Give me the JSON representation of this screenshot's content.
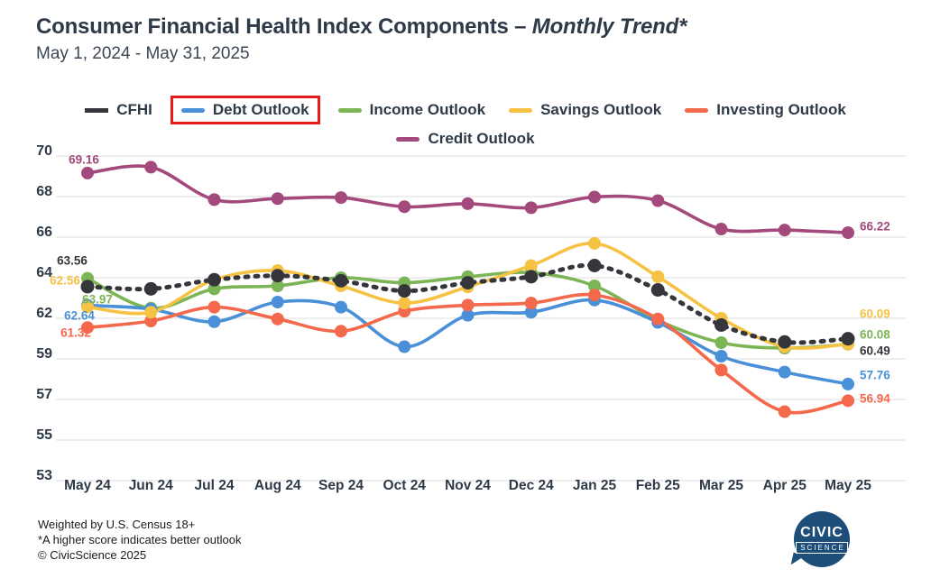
{
  "header": {
    "title_main": "Consumer Financial Health Index Components",
    "title_dash": " – ",
    "title_italic": "Monthly Trend*",
    "subtitle": "May 1, 2024 - May 31, 2025"
  },
  "legend": {
    "highlight_box_color": "#e31b1b",
    "items": [
      {
        "label": "CFHI",
        "color": "#35363c",
        "style": "dashed",
        "highlighted": false
      },
      {
        "label": "Debt Outlook",
        "color": "#4a90d9",
        "style": "solid",
        "highlighted": true
      },
      {
        "label": "Income Outlook",
        "color": "#7cb556",
        "style": "solid",
        "highlighted": false
      },
      {
        "label": "Savings Outlook",
        "color": "#f6c244",
        "style": "solid",
        "highlighted": false
      },
      {
        "label": "Investing Outlook",
        "color": "#f4684c",
        "style": "solid",
        "highlighted": false
      },
      {
        "label": "Credit Outlook",
        "color": "#a4497c",
        "style": "solid",
        "highlighted": false
      }
    ]
  },
  "chart_data": {
    "type": "line",
    "title": "Consumer Financial Health Index Components - Monthly Trend",
    "categories": [
      "May 24",
      "Jun 24",
      "Jul 24",
      "Aug 24",
      "Sep 24",
      "Oct 24",
      "Nov 24",
      "Dec 24",
      "Jan 25",
      "Feb 25",
      "Mar 25",
      "Apr 25",
      "May 25"
    ],
    "y_ticks": [
      70,
      68,
      66,
      64,
      62,
      59,
      57,
      55,
      53
    ],
    "grid": "horizontal",
    "legend_position": "top",
    "series": [
      {
        "name": "Income Outlook",
        "color": "#7cb556",
        "dashed": false,
        "values": [
          63.97,
          62.5,
          63.45,
          63.6,
          64.0,
          63.75,
          64.05,
          64.25,
          63.6,
          61.85,
          60.2,
          59.8,
          60.08
        ],
        "start_label": "63.97",
        "end_label": "60.08"
      },
      {
        "name": "Debt Outlook",
        "color": "#4a90d9",
        "dashed": false,
        "values": [
          62.64,
          62.45,
          61.75,
          62.8,
          62.55,
          59.9,
          62.15,
          62.3,
          62.9,
          61.7,
          59.2,
          58.35,
          57.76
        ],
        "start_label": "62.64",
        "end_label": "57.76"
      },
      {
        "name": "Investing Outlook",
        "color": "#f4684c",
        "dashed": false,
        "values": [
          61.32,
          61.8,
          62.55,
          61.95,
          61.05,
          62.35,
          62.65,
          62.75,
          63.15,
          61.95,
          58.45,
          56.4,
          56.94
        ],
        "start_label": "61.32",
        "end_label": "56.94"
      },
      {
        "name": "Savings Outlook",
        "color": "#f6c244",
        "dashed": false,
        "values": [
          62.56,
          62.3,
          63.9,
          64.35,
          63.6,
          62.75,
          63.55,
          64.6,
          65.69,
          64.05,
          62.0,
          59.9,
          60.09
        ],
        "start_label": "62.56",
        "end_label": "60.09"
      },
      {
        "name": "CFHI",
        "color": "#35363c",
        "dashed": true,
        "values": [
          63.56,
          63.45,
          63.9,
          64.1,
          63.85,
          63.35,
          63.75,
          64.05,
          64.6,
          63.4,
          61.5,
          60.25,
          60.49
        ],
        "start_label": "63.56",
        "end_label": "60.49"
      },
      {
        "name": "Credit Outlook",
        "color": "#a4497c",
        "dashed": false,
        "values": [
          69.16,
          69.45,
          67.85,
          67.9,
          67.95,
          67.5,
          67.65,
          67.45,
          67.98,
          67.8,
          66.4,
          66.35,
          66.22
        ],
        "start_label": "69.16",
        "end_label": "66.22"
      }
    ]
  },
  "footer": {
    "line1": "Weighted by U.S. Census 18+",
    "line2": "*A higher score indicates better outlook",
    "line3": "© CivicScience 2025"
  },
  "logo": {
    "line1": "CIVIC",
    "line2": "SCIENCE",
    "bg": "#1d4e79"
  }
}
